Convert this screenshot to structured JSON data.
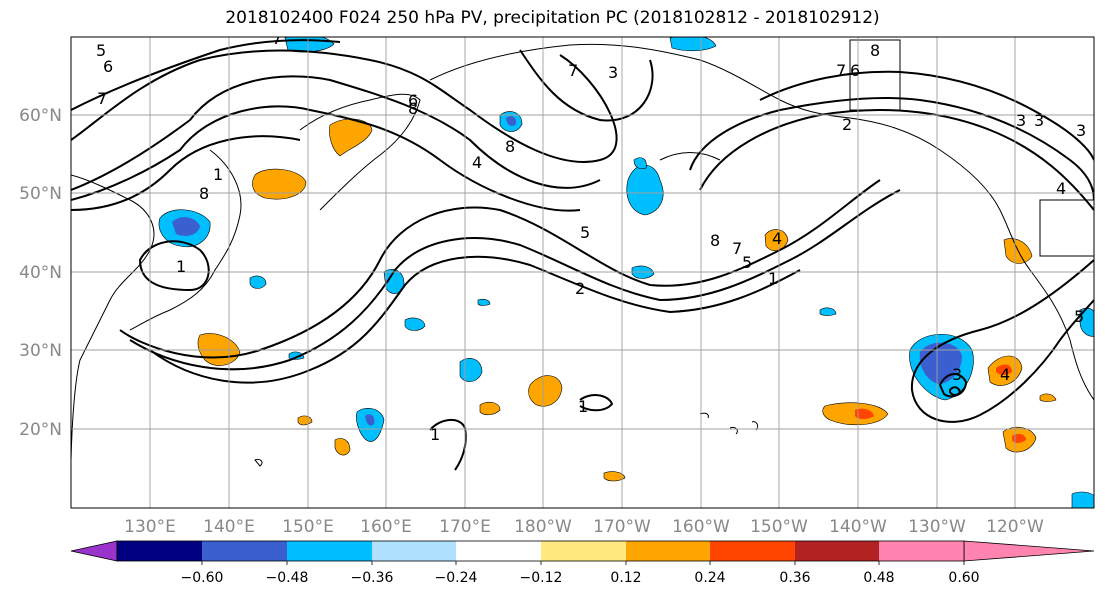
{
  "title": "2018102400 F024 250 hPa PV, precipitation PC (2018102812 - 2018102912)",
  "map": {
    "lat_labels": [
      "60°N",
      "50°N",
      "40°N",
      "30°N",
      "20°N"
    ],
    "lon_labels": [
      "130°E",
      "140°E",
      "150°E",
      "160°E",
      "170°E",
      "180°W",
      "170°W",
      "160°W",
      "150°W",
      "140°W",
      "130°W",
      "120°W"
    ],
    "contour_labels": [
      "5",
      "6",
      "7",
      "7",
      "8",
      "1",
      "8",
      "1",
      "3",
      "6",
      "8",
      "4",
      "5",
      "2",
      "8",
      "7",
      "5",
      "1",
      "4",
      "7",
      "6",
      "8",
      "2",
      "3",
      "3",
      "4",
      "3",
      "5",
      "1",
      "1",
      "7",
      "3",
      "4"
    ]
  },
  "colorbar": {
    "tick_labels": [
      "−0.60",
      "−0.48",
      "−0.36",
      "−0.24",
      "−0.12",
      "0.12",
      "0.24",
      "0.36",
      "0.48",
      "0.60"
    ],
    "colors": [
      "#9933cc",
      "#000080",
      "#3b5fcf",
      "#00bfff",
      "#b0e2ff",
      "#ffffff",
      "#ffea80",
      "#ffa500",
      "#ff4500",
      "#b22222",
      "#ff85b0"
    ]
  },
  "colors": {
    "contour": "#000000",
    "grid": "#a0a0a0",
    "coast": "#000000"
  }
}
